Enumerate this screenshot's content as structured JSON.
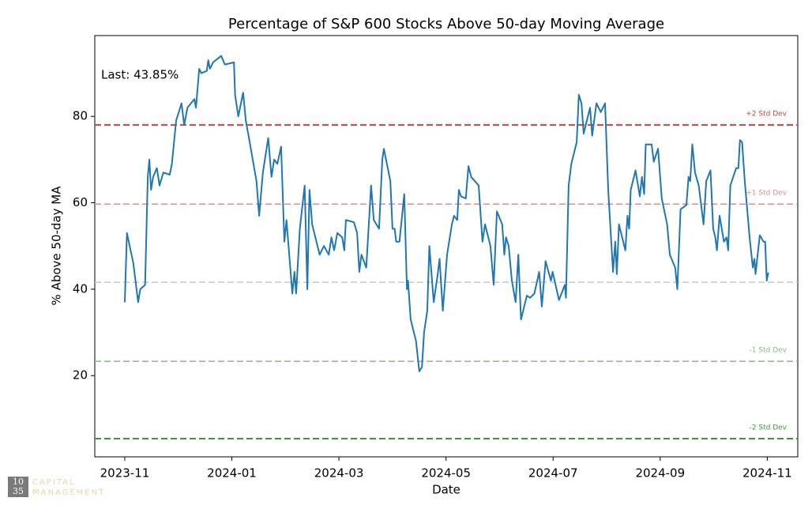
{
  "chart_data": {
    "type": "line",
    "title": "Percentage of S&P 600 Stocks Above 50-day Moving Average",
    "xlabel": "Date",
    "ylabel": "% Above 50-day MA",
    "annotation": "Last: 43.85%",
    "x": [
      0.0,
      0.04,
      0.16,
      0.25,
      0.29,
      0.38,
      0.43,
      0.46,
      0.49,
      0.53,
      0.6,
      0.65,
      0.72,
      0.84,
      0.88,
      0.96,
      1.06,
      1.11,
      1.17,
      1.3,
      1.33,
      1.39,
      1.43,
      1.53,
      1.56,
      1.59,
      1.65,
      1.8,
      1.87,
      2.04,
      2.06,
      2.12,
      2.21,
      2.26,
      2.32,
      2.46,
      2.51,
      2.58,
      2.68,
      2.74,
      2.79,
      2.85,
      2.92,
      2.98,
      3.02,
      3.13,
      3.17,
      3.2,
      3.27,
      3.36,
      3.41,
      3.45,
      3.5,
      3.64,
      3.72,
      3.81,
      3.86,
      3.91,
      3.97,
      4.06,
      4.1,
      4.13,
      4.28,
      4.34,
      4.38,
      4.42,
      4.51,
      4.6,
      4.65,
      4.75,
      4.81,
      4.84,
      4.96,
      5.0,
      5.04,
      5.07,
      5.13,
      5.22,
      5.27,
      5.29,
      5.34,
      5.44,
      5.5,
      5.55,
      5.59,
      5.65,
      5.69,
      5.72,
      5.77,
      5.84,
      5.88,
      5.94,
      6.02,
      6.11,
      6.15,
      6.21,
      6.24,
      6.28,
      6.37,
      6.42,
      6.47,
      6.61,
      6.68,
      6.73,
      6.83,
      6.89,
      6.95,
      7.05,
      7.09,
      7.12,
      7.17,
      7.23,
      7.3,
      7.35,
      7.4,
      7.51,
      7.57,
      7.65,
      7.74,
      7.79,
      7.86,
      7.96,
      7.99,
      8.11,
      8.22,
      8.24,
      8.29,
      8.34,
      8.44,
      8.48,
      8.53,
      8.57,
      8.69,
      8.73,
      8.81,
      8.89,
      8.97,
      9.03,
      9.12,
      9.16,
      9.19,
      9.23,
      9.35,
      9.39,
      9.42,
      9.45,
      9.54,
      9.62,
      9.66,
      9.7,
      9.73,
      9.84,
      9.88,
      9.96,
      10.03,
      10.13,
      10.18,
      10.28,
      10.32,
      10.38,
      10.49,
      10.53,
      10.56,
      10.6,
      10.65,
      10.72,
      10.81,
      10.86,
      10.94,
      10.99,
      11.03,
      11.06,
      11.11,
      11.19,
      11.24,
      11.27,
      11.31,
      11.42,
      11.46,
      11.49,
      11.53,
      11.58,
      11.67,
      11.73,
      11.76,
      11.78,
      11.86,
      11.93,
      11.96,
      11.99,
      12.02
    ],
    "series": [
      {
        "color": "#1f77b4",
        "values": [
          37,
          53,
          46,
          37,
          40,
          41,
          66,
          70,
          63,
          66,
          68,
          64,
          67,
          66.5,
          69,
          79,
          83,
          78,
          82,
          84,
          82,
          91,
          90,
          90.5,
          93,
          91,
          92.5,
          94,
          92,
          92.5,
          85,
          80,
          85.5,
          79,
          75,
          65,
          57,
          67,
          75,
          66,
          70,
          69,
          73,
          51,
          56,
          39,
          44,
          39,
          54,
          64,
          40,
          63,
          55,
          48,
          50,
          48,
          52,
          49,
          53,
          52,
          49,
          56,
          55.5,
          53,
          44,
          48,
          45,
          64,
          56,
          54,
          70,
          72.5,
          65,
          54,
          54,
          51,
          51,
          62,
          40,
          42,
          33,
          28,
          21,
          22,
          30,
          35,
          50,
          45,
          37,
          43,
          47,
          35,
          48,
          55,
          57,
          56,
          63,
          61.5,
          61,
          68.5,
          66,
          64,
          51,
          55,
          50,
          41,
          58,
          55,
          48,
          52,
          50,
          42,
          37,
          48,
          33,
          38.5,
          38,
          39,
          44,
          36,
          46.5,
          42,
          44,
          37.5,
          41,
          38,
          64,
          69,
          74,
          85,
          83,
          76,
          82,
          75.5,
          83,
          81,
          83,
          63,
          44,
          51,
          43.5,
          55,
          49,
          57,
          54,
          63,
          67.5,
          61.5,
          66,
          62,
          73.5,
          73.5,
          69.5,
          72.5,
          61,
          55,
          48,
          45,
          40,
          58.5,
          59.5,
          66,
          65,
          73.5,
          67,
          64,
          55,
          65,
          67.5,
          54,
          52,
          49,
          57,
          51,
          52,
          49,
          64,
          68,
          68,
          74.5,
          74,
          65,
          52,
          45,
          47,
          43.5,
          52.5,
          51,
          51,
          42,
          43.85
        ]
      }
    ],
    "reference_lines": [
      {
        "label": "+2 Std Dev",
        "value": 78.0,
        "color": "#e03c31",
        "width": 2
      },
      {
        "label": "+1 Std Dev",
        "value": 59.7,
        "color": "#e88a8a",
        "width": 1.5
      },
      {
        "value": 41.6,
        "color": "#c8c8c8",
        "width": 1.5
      },
      {
        "label": "-1 Std Dev",
        "value": 23.3,
        "color": "#80c080",
        "width": 1.5
      },
      {
        "label": "-2 Std Dev",
        "value": 5.4,
        "color": "#3a9a3a",
        "width": 2
      }
    ],
    "xlim": [
      -0.56,
      12.57
    ],
    "ylim": [
      1.2,
      98.7
    ],
    "xticks": [
      {
        "value": 0,
        "label": "2023-11"
      },
      {
        "value": 2,
        "label": "2024-01"
      },
      {
        "value": 4,
        "label": "2024-03"
      },
      {
        "value": 6,
        "label": "2024-05"
      },
      {
        "value": 8,
        "label": "2024-07"
      },
      {
        "value": 10,
        "label": "2024-09"
      },
      {
        "value": 12,
        "label": "2024-11"
      }
    ],
    "yticks": [
      20,
      40,
      60,
      80
    ]
  },
  "logo": {
    "numbers": [
      "10",
      "35"
    ],
    "words": [
      "CAPITAL",
      "MANAGEMENT"
    ]
  }
}
